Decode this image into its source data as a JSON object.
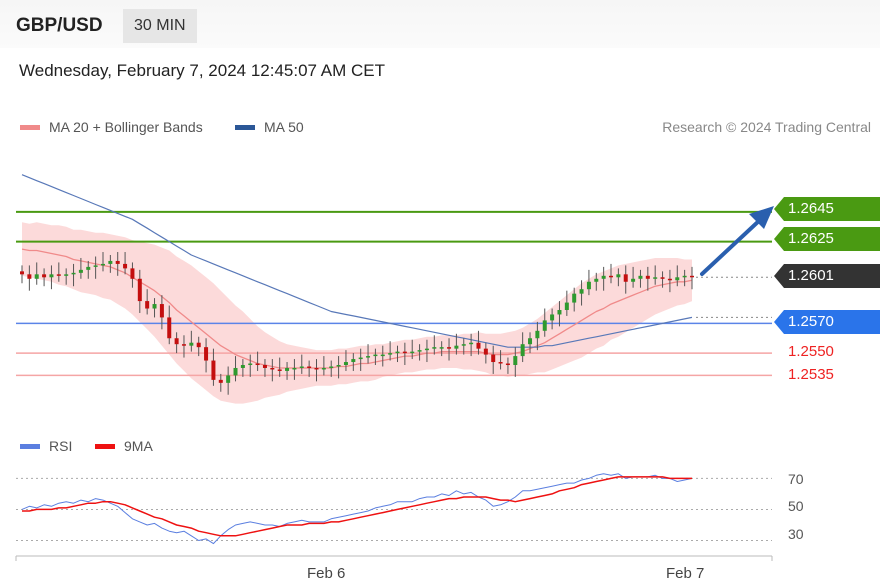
{
  "header": {
    "symbol": "GBP/USD",
    "timeframe": "30 MIN"
  },
  "timestamp": "Wednesday, February 7, 2024 12:45:07 AM CET",
  "legend": {
    "ma20_label": "MA 20 + Bollinger Bands",
    "ma20_color": "#f08a8a",
    "ma50_label": "MA 50",
    "ma50_color": "#2b5797"
  },
  "credit": "Research © 2024 Trading Central",
  "rsi_legend": {
    "rsi_label": "RSI",
    "rsi_color": "#5b7fe0",
    "ma9_label": "9MA",
    "ma9_color": "#ee1111"
  },
  "price_tags": {
    "r2": {
      "value": "1.2645",
      "color": "#4a9a12"
    },
    "r1": {
      "value": "1.2625",
      "color": "#4a9a12"
    },
    "last": {
      "value": "1.2601",
      "color": "#333333"
    },
    "pivot": {
      "value": "1.2570",
      "color": "#2a74ea"
    },
    "s1": {
      "value": "1.2550",
      "color": "#ee2222"
    },
    "s2": {
      "value": "1.2535",
      "color": "#ee2222"
    }
  },
  "rsi_ticks": [
    "70",
    "50",
    "30"
  ],
  "x_labels": {
    "feb6": "Feb 6",
    "feb7": "Feb 7"
  },
  "chart_data": {
    "type": "candlestick",
    "price_axis_range": [
      1.2505,
      1.269
    ],
    "levels": {
      "resistance": [
        1.2645,
        1.2625
      ],
      "pivot": 1.257,
      "support": [
        1.255,
        1.2535
      ],
      "last": 1.2601
    },
    "close": [
      1.2603,
      1.26,
      1.2603,
      1.2601,
      1.2603,
      1.2602,
      1.2603,
      1.2604,
      1.2606,
      1.2608,
      1.2609,
      1.261,
      1.2612,
      1.261,
      1.2607,
      1.26,
      1.2585,
      1.258,
      1.2583,
      1.2574,
      1.256,
      1.2556,
      1.2555,
      1.2557,
      1.2554,
      1.2545,
      1.2532,
      1.253,
      1.2535,
      1.254,
      1.2542,
      1.2543,
      1.2542,
      1.254,
      1.2539,
      1.2538,
      1.254,
      1.254,
      1.2541,
      1.254,
      1.2539,
      1.254,
      1.2541,
      1.2542,
      1.2544,
      1.2546,
      1.2547,
      1.2548,
      1.2549,
      1.2549,
      1.255,
      1.2551,
      1.255,
      1.2551,
      1.2552,
      1.2553,
      1.2554,
      1.2554,
      1.2553,
      1.2555,
      1.2556,
      1.2557,
      1.2553,
      1.2549,
      1.2544,
      1.2543,
      1.2542,
      1.2548,
      1.2556,
      1.256,
      1.2565,
      1.2572,
      1.2576,
      1.2579,
      1.2584,
      1.259,
      1.2593,
      1.2598,
      1.26,
      1.2602,
      1.2601,
      1.2603,
      1.2598,
      1.26,
      1.2602,
      1.26,
      1.2601,
      1.26,
      1.2599,
      1.2601,
      1.2602,
      1.2601
    ],
    "ma20": [
      1.262,
      1.2619,
      1.2619,
      1.2618,
      1.2617,
      1.2616,
      1.2615,
      1.2613,
      1.2612,
      1.2611,
      1.261,
      1.2609,
      1.2608,
      1.2606,
      1.2604,
      1.2601,
      1.2598,
      1.2595,
      1.2592,
      1.2588,
      1.2584,
      1.2579,
      1.2575,
      1.2571,
      1.2567,
      1.2563,
      1.2559,
      1.2555,
      1.2552,
      1.2549,
      1.2547,
      1.2545,
      1.2543,
      1.2542,
      1.2541,
      1.254,
      1.254,
      1.254,
      1.254,
      1.254,
      1.254,
      1.254,
      1.254,
      1.2541,
      1.2541,
      1.2542,
      1.2543,
      1.2543,
      1.2544,
      1.2545,
      1.2546,
      1.2547,
      1.2548,
      1.2548,
      1.2549,
      1.255,
      1.255,
      1.2551,
      1.2551,
      1.2551,
      1.2551,
      1.2551,
      1.2551,
      1.255,
      1.2549,
      1.2549,
      1.2549,
      1.255,
      1.2551,
      1.2553,
      1.2555,
      1.2557,
      1.256,
      1.2563,
      1.2566,
      1.2569,
      1.2572,
      1.2575,
      1.2578,
      1.258,
      1.2583,
      1.2585,
      1.2587,
      1.2589,
      1.2591,
      1.2593,
      1.2595,
      1.2596,
      1.2597,
      1.2598,
      1.2598,
      1.2599
    ],
    "ma50": [
      1.267,
      1.2668,
      1.2666,
      1.2664,
      1.2662,
      1.266,
      1.2658,
      1.2656,
      1.2654,
      1.2652,
      1.265,
      1.2648,
      1.2646,
      1.2644,
      1.2642,
      1.264,
      1.2637,
      1.2634,
      1.2631,
      1.2628,
      1.2625,
      1.2622,
      1.2619,
      1.2616,
      1.2614,
      1.2612,
      1.261,
      1.2608,
      1.2606,
      1.2604,
      1.2602,
      1.26,
      1.2598,
      1.2596,
      1.2594,
      1.2592,
      1.259,
      1.2588,
      1.2586,
      1.2584,
      1.2582,
      1.258,
      1.2578,
      1.2577,
      1.2576,
      1.2575,
      1.2574,
      1.2573,
      1.2572,
      1.2571,
      1.257,
      1.2569,
      1.2568,
      1.2567,
      1.2566,
      1.2565,
      1.2564,
      1.2563,
      1.2562,
      1.2561,
      1.256,
      1.2559,
      1.2558,
      1.2557,
      1.2556,
      1.2555,
      1.2554,
      1.2554,
      1.2554,
      1.2554,
      1.2554,
      1.2555,
      1.2555,
      1.2556,
      1.2557,
      1.2558,
      1.2559,
      1.256,
      1.2561,
      1.2562,
      1.2563,
      1.2564,
      1.2565,
      1.2566,
      1.2567,
      1.2568,
      1.2569,
      1.257,
      1.2571,
      1.2572,
      1.2573,
      1.2574
    ],
    "bb_half_width": [
      0.0018,
      0.0018,
      0.0019,
      0.0019,
      0.0019,
      0.002,
      0.002,
      0.002,
      0.0021,
      0.0021,
      0.0021,
      0.0022,
      0.0022,
      0.0023,
      0.0024,
      0.0025,
      0.0027,
      0.0029,
      0.0031,
      0.0033,
      0.0035,
      0.0036,
      0.0037,
      0.0038,
      0.0038,
      0.0038,
      0.0038,
      0.0037,
      0.0035,
      0.0033,
      0.0031,
      0.0028,
      0.0025,
      0.0022,
      0.002,
      0.0018,
      0.0016,
      0.0015,
      0.0014,
      0.0013,
      0.0012,
      0.0012,
      0.0012,
      0.0012,
      0.0012,
      0.0012,
      0.0012,
      0.0012,
      0.0012,
      0.0011,
      0.0011,
      0.0011,
      0.0011,
      0.0011,
      0.0011,
      0.0011,
      0.0011,
      0.0011,
      0.0011,
      0.0011,
      0.0012,
      0.0012,
      0.0013,
      0.0013,
      0.0014,
      0.0014,
      0.0015,
      0.0015,
      0.0016,
      0.0017,
      0.0018,
      0.002,
      0.0021,
      0.0022,
      0.0023,
      0.0024,
      0.0025,
      0.0025,
      0.0025,
      0.0025,
      0.0024,
      0.0024,
      0.0023,
      0.0022,
      0.0021,
      0.002,
      0.0019,
      0.0018,
      0.0017,
      0.0016,
      0.0015,
      0.0014
    ],
    "rsi": [
      50,
      52,
      51,
      53,
      52,
      54,
      55,
      54,
      56,
      55,
      57,
      56,
      54,
      52,
      48,
      44,
      42,
      40,
      41,
      38,
      36,
      35,
      36,
      33,
      30,
      31,
      28,
      33,
      37,
      40,
      41,
      42,
      41,
      40,
      40,
      39,
      41,
      42,
      43,
      42,
      42,
      42,
      44,
      45,
      46,
      47,
      48,
      49,
      51,
      52,
      53,
      55,
      55,
      55,
      57,
      58,
      58,
      60,
      59,
      62,
      60,
      61,
      58,
      56,
      52,
      53,
      55,
      58,
      62,
      62,
      63,
      64,
      65,
      66,
      67,
      67,
      69,
      70,
      72,
      73,
      72,
      73,
      70,
      71,
      71,
      71,
      72,
      70,
      70,
      68,
      69,
      70
    ],
    "rsi_ma9": [
      49,
      49,
      50,
      50,
      50,
      51,
      51,
      52,
      53,
      54,
      54,
      55,
      55,
      54,
      53,
      51,
      49,
      47,
      45,
      44,
      42,
      40,
      39,
      38,
      36,
      35,
      34,
      33,
      33,
      33,
      34,
      35,
      36,
      37,
      38,
      39,
      40,
      40,
      40,
      41,
      41,
      41,
      42,
      42,
      43,
      44,
      45,
      46,
      47,
      48,
      49,
      50,
      51,
      52,
      53,
      54,
      55,
      56,
      57,
      57,
      58,
      58,
      58,
      58,
      57,
      56,
      56,
      55,
      56,
      57,
      58,
      59,
      60,
      62,
      63,
      64,
      66,
      67,
      68,
      69,
      70,
      71,
      71,
      71,
      71,
      71,
      71,
      71,
      70,
      70,
      70,
      70
    ],
    "rsi_range": [
      20,
      78
    ],
    "rsi_levels": [
      70,
      50,
      30
    ]
  }
}
